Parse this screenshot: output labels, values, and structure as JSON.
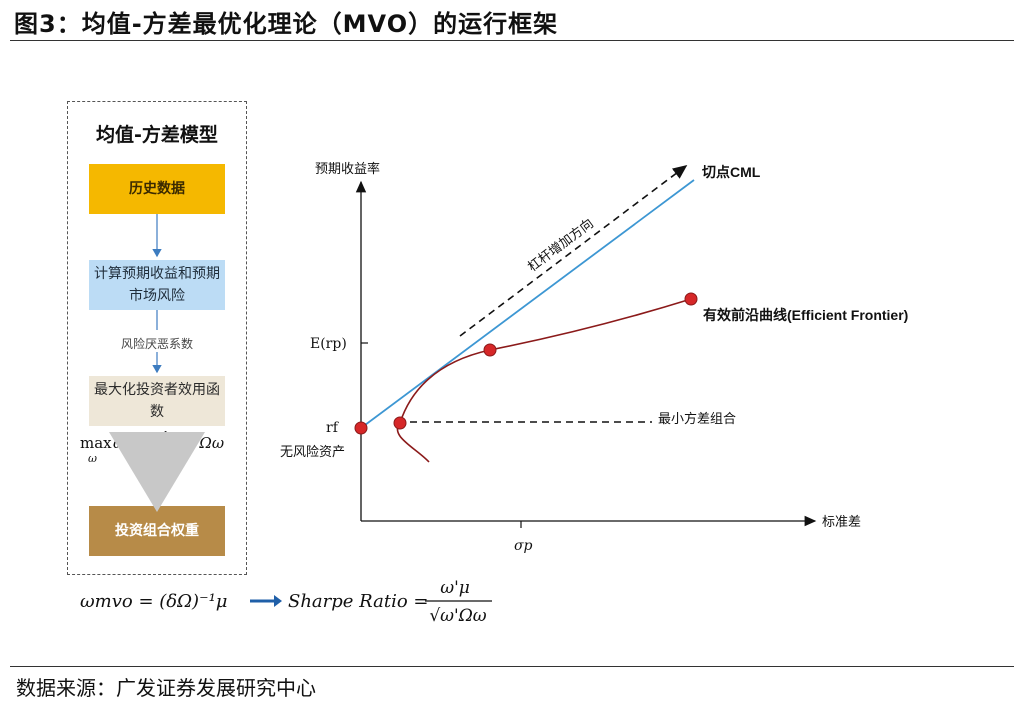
{
  "title": "图3：均值-方差最优化理论（MVO）的运行框架",
  "source": "数据来源：广发证券发展研究中心",
  "model": {
    "title": "均值-方差模型",
    "steps": [
      "历史数据",
      "计算预期收益和预期市场风险",
      "最大化投资者效用函数",
      "投资组合权重"
    ],
    "note": "风险厌恶系数",
    "objective": "max ω'μ − ½ δω'Ωω",
    "objective_sub": "ω"
  },
  "bottom_formula": {
    "left": "ωmvo = (δΩ)⁻¹μ",
    "middle": "Sharpe Ratio =",
    "numerator": "ω'μ",
    "denominator": "√ω'Ωω"
  },
  "chart_data": {
    "type": "line",
    "ylabel": "预期收益率",
    "xlabel": "标准差",
    "y_ticks": [
      "E(rp)",
      "rf"
    ],
    "x_ticks": [
      "σp"
    ],
    "series": [
      {
        "name": "切点CML"
      },
      {
        "name": "有效前沿曲线(Efficient Frontier)"
      }
    ],
    "points": {
      "risk_free": "无风险资产",
      "min_variance": "最小方差组合",
      "tangency": "",
      "frontier_end": ""
    },
    "annotations": [
      "杠杆增加方向",
      "切点CML",
      "有效前沿曲线(Efficient Frontier)",
      "最小方差组合",
      "无风险资产"
    ],
    "grid": false,
    "legend": "none"
  },
  "colors": {
    "step1": "#f5b800",
    "step2": "#bcdcf5",
    "step3": "#eee7d8",
    "step4": "#b78b48",
    "cml": "#3d97d3",
    "frontier": "#8b1a1a",
    "point": "#d62728",
    "arrow_blue": "#1f5fa8"
  }
}
